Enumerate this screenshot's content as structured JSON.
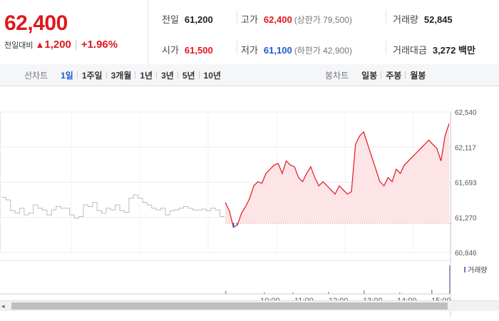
{
  "price": {
    "current": "62,400",
    "change_label": "전일대비",
    "change_symbol": "▲",
    "change_value": "1,200",
    "change_pct": "+1.96%"
  },
  "stats": {
    "prev_close": {
      "label": "전일",
      "value": "61,200"
    },
    "high": {
      "label": "고가",
      "value": "62,400",
      "sub": "(상한가 79,500)"
    },
    "volume": {
      "label": "거래량",
      "value": "52,845"
    },
    "open": {
      "label": "시가",
      "value": "61,500"
    },
    "low": {
      "label": "저가",
      "value": "61,100",
      "sub": "(하한가 42,900)"
    },
    "turnover": {
      "label": "거래대금",
      "value": "3,272 백만"
    }
  },
  "tabs": {
    "line_label": "선차트",
    "line_items": [
      "1일",
      "1주일",
      "3개월",
      "1년",
      "3년",
      "5년",
      "10년"
    ],
    "line_active": "1일",
    "candle_label": "봉차트",
    "candle_items": [
      "일봉",
      "주봉",
      "월봉"
    ]
  },
  "colors": {
    "up": "#e0171f",
    "down": "#1a5ccf",
    "prev_day_line": "#b8bcc2",
    "fill": "#fde4e6"
  },
  "chart_data": {
    "type": "line",
    "title": "",
    "ylabel": "",
    "yticks": [
      "62,540",
      "62,117",
      "61,693",
      "61,270",
      "60,846"
    ],
    "ylim": [
      60846,
      62540
    ],
    "baseline": 61200,
    "xlabels_visible_partial": [
      "10:00",
      "11:00",
      "12:00",
      "13:00",
      "14:00",
      "15:00"
    ],
    "volume_legend": "거래량",
    "series": [
      {
        "values": [
          61510,
          61480,
          61350,
          61320,
          61380,
          61300,
          61320,
          61420,
          61380,
          61360,
          61300,
          61360,
          61400,
          61380,
          61380,
          61300,
          61260,
          61280,
          61420,
          61400,
          61450,
          61350,
          61320,
          61380,
          61360,
          61420,
          61350,
          61330,
          61500,
          61540,
          61500,
          61450,
          61420,
          61380,
          61360,
          61380,
          61300,
          61350,
          61360,
          61380,
          61400,
          61380,
          61360,
          61360,
          61370,
          61350,
          61380,
          61360,
          61280,
          61280
        ]
      },
      {
        "values": [
          61450,
          61350,
          61150,
          61180,
          61320,
          61400,
          61500,
          61650,
          61700,
          61680,
          61800,
          61850,
          61900,
          61920,
          61800,
          61950,
          61900,
          61880,
          61750,
          61700,
          61800,
          61880,
          61750,
          61650,
          61700,
          61650,
          61600,
          61550,
          61650,
          61600,
          61550,
          61580,
          62150,
          62250,
          62300,
          62150,
          62000,
          61850,
          61700,
          61650,
          61750,
          61700,
          61850,
          61800,
          61900,
          61950,
          62000,
          62050,
          62100,
          62150,
          62200,
          62150,
          62100,
          61950,
          62250,
          62400
        ]
      }
    ]
  }
}
